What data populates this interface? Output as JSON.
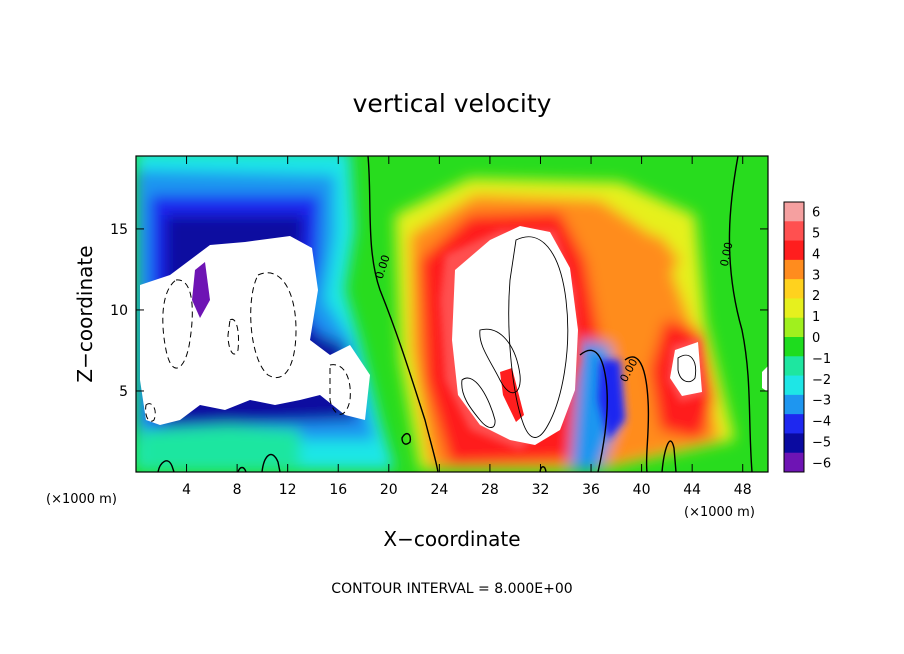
{
  "chart_data": {
    "type": "heatmap",
    "title": "vertical velocity",
    "xlabel": "X−coordinate",
    "ylabel": "Z−coordinate",
    "x_unit_left": "(×1000 m)",
    "x_unit_right": "(×1000 m)",
    "xlim": [
      0,
      50
    ],
    "ylim": [
      0,
      19.5
    ],
    "x_ticks": [
      4,
      8,
      12,
      16,
      20,
      24,
      28,
      32,
      36,
      40,
      44,
      48
    ],
    "y_ticks": [
      5,
      10,
      15
    ],
    "x_tick_labels": [
      "4",
      "8",
      "12",
      "16",
      "20",
      "24",
      "28",
      "32",
      "36",
      "40",
      "44",
      "48"
    ],
    "y_tick_labels": [
      "5",
      "10",
      "15"
    ],
    "colorbar": {
      "min": -6,
      "max": 6,
      "labels": [
        "6",
        "5",
        "4",
        "3",
        "2",
        "1",
        "0",
        "−1",
        "−2",
        "−3",
        "−4",
        "−5",
        "−6"
      ],
      "colors": [
        "#f5a0a0",
        "#ff5050",
        "#ff1e1e",
        "#ff8c1e",
        "#ffd21e",
        "#e6f01e",
        "#a0f01e",
        "#1edc1e",
        "#1ee6a0",
        "#1ee6e6",
        "#1e96f0",
        "#1e28f0",
        "#0a0aa0",
        "#6e14b4"
      ]
    },
    "contour_labels": [
      "0.00",
      "0.00",
      "0.00"
    ],
    "contour_interval_text": "CONTOUR INTERVAL = 8.000E+00",
    "white_regions_note": ""
  }
}
